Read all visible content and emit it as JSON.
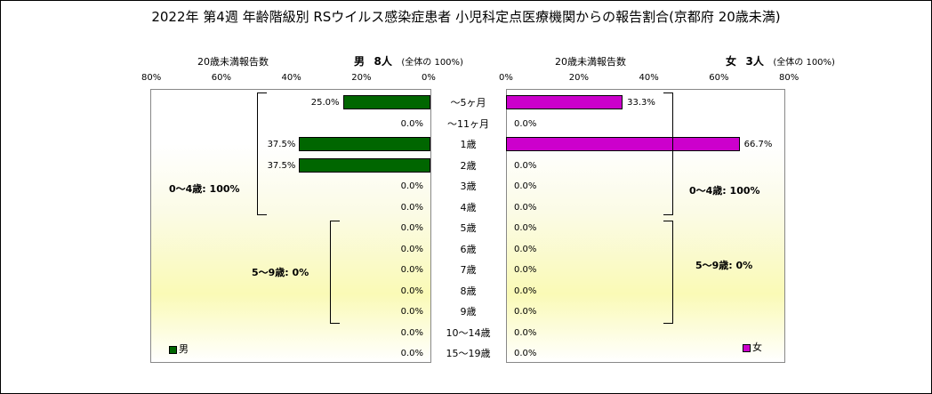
{
  "title": "2022年 第4週 年齢階級別 RSウイルス感染症患者 小児科定点医療機関からの報告割合(京都府 20歳未満)",
  "male_header": {
    "caption": "20歳未満報告数",
    "label": "男",
    "count": "8人",
    "total": "(全体の  100%)"
  },
  "female_header": {
    "caption": "20歳未満報告数",
    "label": "女",
    "count": "3人",
    "total": "(全体の  100%)"
  },
  "colors": {
    "male": "#006600",
    "female": "#cc00cc"
  },
  "legend": {
    "male": "男",
    "female": "女"
  },
  "groups": {
    "male_0_4": "0～4歳: 100%",
    "male_5_9": "5～9歳: 0%",
    "female_0_4": "0～4歳: 100%",
    "female_5_9": "5～9歳: 0%"
  },
  "chart_data": {
    "type": "bar",
    "orientation": "horizontal-butterfly",
    "categories": [
      "～5ヶ月",
      "～11ヶ月",
      "1歳",
      "2歳",
      "3歳",
      "4歳",
      "5歳",
      "6歳",
      "7歳",
      "8歳",
      "9歳",
      "10～14歳",
      "15～19歳"
    ],
    "series": [
      {
        "name": "男",
        "values": [
          25.0,
          0.0,
          37.5,
          37.5,
          0.0,
          0.0,
          0.0,
          0.0,
          0.0,
          0.0,
          0.0,
          0.0,
          0.0
        ]
      },
      {
        "name": "女",
        "values": [
          33.3,
          0.0,
          66.7,
          0.0,
          0.0,
          0.0,
          0.0,
          0.0,
          0.0,
          0.0,
          0.0,
          0.0,
          0.0
        ]
      }
    ],
    "male_ticks": [
      "80%",
      "60%",
      "40%",
      "20%",
      "0%"
    ],
    "female_ticks": [
      "0%",
      "20%",
      "40%",
      "60%",
      "80%"
    ],
    "xlim": [
      0,
      80
    ],
    "value_suffix": "%"
  }
}
